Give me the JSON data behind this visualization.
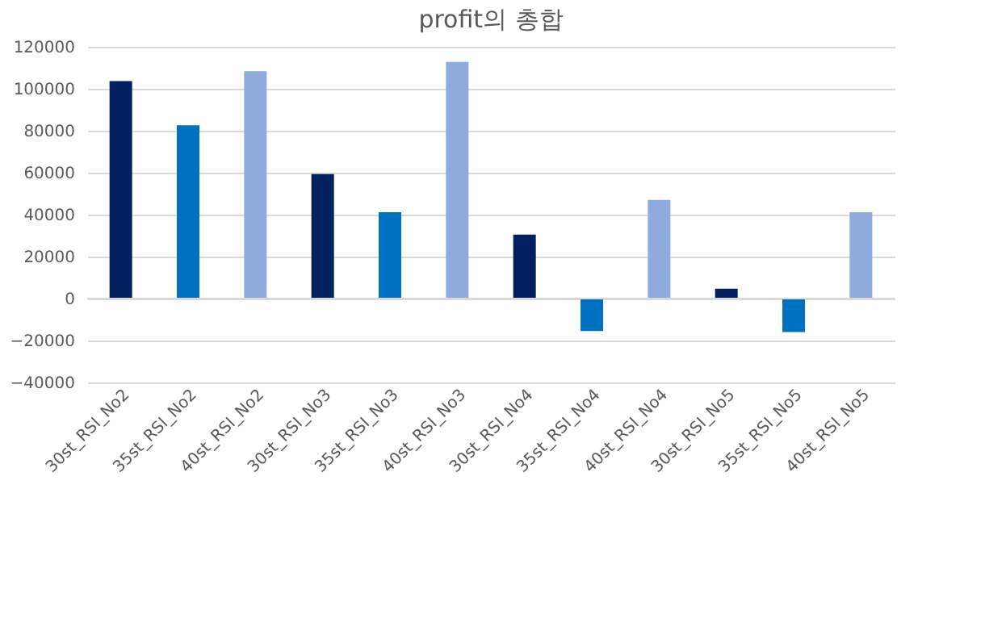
{
  "chart_data": {
    "type": "bar",
    "title": "profit의 총합",
    "categories": [
      "30st_RSI_No2",
      "35st_RSI_No2",
      "40st_RSI_No2",
      "30st_RSI_No3",
      "35st_RSI_No3",
      "40st_RSI_No3",
      "30st_RSI_No4",
      "35st_RSI_No4",
      "40st_RSI_No4",
      "30st_RSI_No5",
      "35st_RSI_No5",
      "40st_RSI_No5"
    ],
    "values": [
      103700,
      82600,
      108400,
      59300,
      41200,
      112800,
      30500,
      -15500,
      47000,
      4700,
      -16000,
      41200
    ],
    "colors": [
      "#002060",
      "#0070c0",
      "#8faadc",
      "#002060",
      "#0070c0",
      "#8faadc",
      "#002060",
      "#0070c0",
      "#8faadc",
      "#002060",
      "#0070c0",
      "#8faadc"
    ],
    "ylim": [
      -40000,
      120000
    ],
    "yticks": [
      -40000,
      -20000,
      0,
      20000,
      40000,
      60000,
      80000,
      100000,
      120000
    ],
    "grid": "y"
  }
}
